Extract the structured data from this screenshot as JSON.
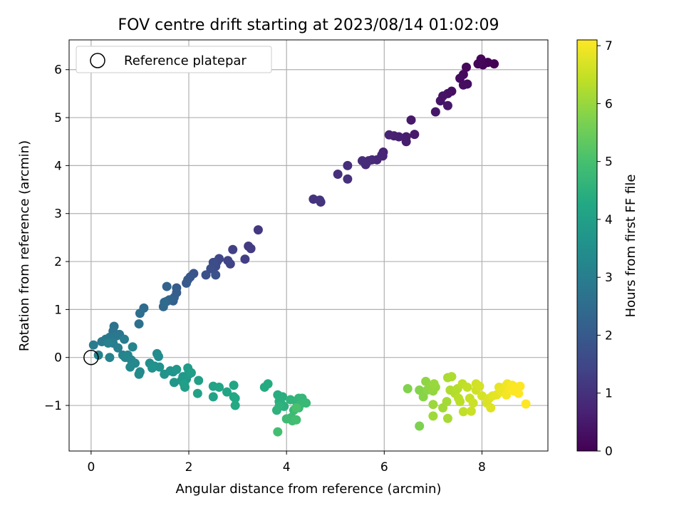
{
  "chart_data": {
    "type": "scatter",
    "title": "FOV centre drift starting at 2023/08/14 01:02:09",
    "xlabel": "Angular distance from reference (arcmin)",
    "ylabel": "Rotation from reference (arcmin)",
    "xlim": [
      -0.45,
      9.35
    ],
    "ylim": [
      -1.95,
      6.62
    ],
    "xticks": [
      0,
      2,
      4,
      6,
      8
    ],
    "yticks": [
      -1,
      0,
      1,
      2,
      3,
      4,
      5,
      6
    ],
    "xtick_labels": [
      "0",
      "2",
      "4",
      "6",
      "8"
    ],
    "ytick_labels": [
      "−1",
      "0",
      "1",
      "2",
      "3",
      "4",
      "5",
      "6"
    ],
    "grid": true,
    "legend": {
      "placement": "top-left",
      "entries": [
        "Reference platepar"
      ]
    },
    "reference_point": {
      "x": 0,
      "y": 0
    },
    "colorbar": {
      "label": "Hours from first FF file",
      "range": [
        0,
        7.1
      ],
      "ticks": [
        0,
        1,
        2,
        3,
        4,
        5,
        6,
        7
      ],
      "tick_labels": [
        "0",
        "1",
        "2",
        "3",
        "4",
        "5",
        "6",
        "7"
      ],
      "colormap": "viridis"
    },
    "points": [
      [
        8.25,
        6.12,
        0.0
      ],
      [
        8.12,
        6.15,
        0.03
      ],
      [
        8.02,
        6.1,
        0.06
      ],
      [
        7.98,
        6.22,
        0.09
      ],
      [
        7.92,
        6.12,
        0.12
      ],
      [
        7.68,
        6.05,
        0.15
      ],
      [
        7.62,
        5.9,
        0.18
      ],
      [
        7.55,
        5.82,
        0.21
      ],
      [
        7.7,
        5.7,
        0.24
      ],
      [
        7.62,
        5.68,
        0.27
      ],
      [
        7.38,
        5.55,
        0.3
      ],
      [
        7.3,
        5.5,
        0.33
      ],
      [
        7.2,
        5.45,
        0.36
      ],
      [
        7.15,
        5.35,
        0.39
      ],
      [
        7.05,
        5.12,
        0.42
      ],
      [
        7.3,
        5.25,
        0.45
      ],
      [
        6.55,
        4.95,
        0.48
      ],
      [
        6.62,
        4.65,
        0.51
      ],
      [
        6.45,
        4.6,
        0.54
      ],
      [
        6.45,
        4.5,
        0.57
      ],
      [
        6.3,
        4.6,
        0.6
      ],
      [
        6.2,
        4.62,
        0.63
      ],
      [
        6.1,
        4.64,
        0.66
      ],
      [
        5.98,
        4.28,
        0.69
      ],
      [
        5.97,
        4.2,
        0.72
      ],
      [
        5.95,
        4.22,
        0.75
      ],
      [
        5.85,
        4.12,
        0.78
      ],
      [
        5.75,
        4.12,
        0.81
      ],
      [
        5.68,
        4.1,
        0.84
      ],
      [
        5.62,
        4.02,
        0.87
      ],
      [
        5.55,
        4.1,
        0.9
      ],
      [
        5.25,
        4.0,
        0.93
      ],
      [
        5.05,
        3.82,
        0.96
      ],
      [
        5.25,
        3.72,
        0.99
      ],
      [
        4.7,
        3.24,
        1.02
      ],
      [
        4.55,
        3.3,
        1.05
      ],
      [
        4.68,
        3.28,
        1.08
      ],
      [
        3.42,
        2.66,
        1.15
      ],
      [
        3.22,
        2.32,
        1.2
      ],
      [
        3.27,
        2.27,
        1.25
      ],
      [
        3.15,
        2.05,
        1.3
      ],
      [
        2.9,
        2.25,
        1.35
      ],
      [
        2.85,
        1.95,
        1.4
      ],
      [
        2.8,
        2.02,
        1.45
      ],
      [
        2.62,
        2.06,
        1.5
      ],
      [
        2.58,
        2.0,
        1.55
      ],
      [
        2.55,
        1.9,
        1.6
      ],
      [
        2.5,
        1.98,
        1.65
      ],
      [
        2.45,
        1.85,
        1.7
      ],
      [
        2.35,
        1.72,
        1.75
      ],
      [
        2.55,
        1.72,
        1.8
      ],
      [
        2.1,
        1.75,
        1.85
      ],
      [
        2.03,
        1.68,
        1.9
      ],
      [
        1.98,
        1.62,
        1.95
      ],
      [
        1.95,
        1.55,
        2.0
      ],
      [
        1.75,
        1.45,
        2.05
      ],
      [
        1.75,
        1.35,
        2.1
      ],
      [
        1.7,
        1.25,
        2.15
      ],
      [
        1.68,
        1.18,
        2.2
      ],
      [
        1.55,
        1.48,
        2.25
      ],
      [
        1.6,
        1.2,
        2.3
      ],
      [
        1.55,
        1.17,
        2.35
      ],
      [
        1.48,
        1.06,
        2.4
      ],
      [
        1.5,
        1.15,
        2.45
      ],
      [
        1.08,
        1.03,
        2.5
      ],
      [
        1.0,
        0.92,
        2.55
      ],
      [
        0.98,
        0.7,
        2.6
      ],
      [
        0.47,
        0.65,
        2.65
      ],
      [
        0.45,
        0.55,
        2.7
      ],
      [
        0.58,
        0.48,
        2.75
      ],
      [
        0.52,
        0.45,
        2.8
      ],
      [
        0.38,
        0.42,
        2.85
      ],
      [
        0.3,
        0.38,
        2.88
      ],
      [
        0.22,
        0.33,
        2.91
      ],
      [
        0.05,
        0.26,
        2.94
      ],
      [
        0.68,
        0.38,
        2.97
      ],
      [
        0.45,
        0.3,
        3.0
      ],
      [
        0.55,
        0.2,
        3.03
      ],
      [
        0.35,
        0.3,
        3.06
      ],
      [
        0.15,
        0.05,
        3.09
      ],
      [
        0.38,
        0.0,
        3.12
      ],
      [
        0.65,
        0.05,
        3.15
      ],
      [
        0.7,
        0.0,
        3.18
      ],
      [
        0.85,
        0.22,
        3.21
      ],
      [
        0.75,
        0.05,
        3.24
      ],
      [
        0.82,
        -0.05,
        3.27
      ],
      [
        0.9,
        -0.12,
        3.3
      ],
      [
        0.8,
        -0.2,
        3.33
      ],
      [
        1.0,
        -0.3,
        3.36
      ],
      [
        0.98,
        -0.35,
        3.39
      ],
      [
        1.35,
        0.08,
        3.42
      ],
      [
        1.38,
        0.02,
        3.45
      ],
      [
        1.2,
        -0.12,
        3.48
      ],
      [
        1.3,
        -0.18,
        3.51
      ],
      [
        1.4,
        -0.2,
        3.54
      ],
      [
        1.25,
        -0.22,
        3.57
      ],
      [
        1.5,
        -0.35,
        3.6
      ],
      [
        1.62,
        -0.28,
        3.63
      ],
      [
        1.68,
        -0.3,
        3.66
      ],
      [
        1.75,
        -0.25,
        3.69
      ],
      [
        1.7,
        -0.52,
        3.72
      ],
      [
        1.85,
        -0.48,
        3.75
      ],
      [
        1.88,
        -0.4,
        3.78
      ],
      [
        1.95,
        -0.45,
        3.81
      ],
      [
        2.0,
        -0.35,
        3.84
      ],
      [
        2.0,
        -0.28,
        3.87
      ],
      [
        1.98,
        -0.22,
        3.9
      ],
      [
        2.05,
        -0.32,
        3.93
      ],
      [
        1.92,
        -0.62,
        3.96
      ],
      [
        1.9,
        -0.55,
        3.99
      ],
      [
        2.2,
        -0.48,
        4.02
      ],
      [
        2.18,
        -0.75,
        4.05
      ],
      [
        2.5,
        -0.6,
        4.08
      ],
      [
        2.5,
        -0.82,
        4.11
      ],
      [
        2.62,
        -0.62,
        4.14
      ],
      [
        2.78,
        -0.72,
        4.17
      ],
      [
        2.92,
        -0.58,
        4.2
      ],
      [
        2.92,
        -0.82,
        4.23
      ],
      [
        2.95,
        -0.85,
        4.26
      ],
      [
        2.95,
        -1.0,
        4.29
      ],
      [
        3.55,
        -0.62,
        4.32
      ],
      [
        3.62,
        -0.55,
        4.35
      ],
      [
        3.82,
        -0.78,
        4.38
      ],
      [
        3.92,
        -0.82,
        4.41
      ],
      [
        3.85,
        -0.92,
        4.44
      ],
      [
        3.9,
        -0.98,
        4.47
      ],
      [
        3.95,
        -1.02,
        4.5
      ],
      [
        3.8,
        -1.1,
        4.53
      ],
      [
        3.85,
        -1.02,
        4.56
      ],
      [
        4.08,
        -0.88,
        4.59
      ],
      [
        4.2,
        -0.92,
        4.62
      ],
      [
        4.25,
        -0.85,
        4.65
      ],
      [
        4.32,
        -0.85,
        4.68
      ],
      [
        4.32,
        -0.95,
        4.71
      ],
      [
        4.4,
        -0.95,
        4.74
      ],
      [
        4.25,
        -1.05,
        4.77
      ],
      [
        4.15,
        -1.1,
        4.8
      ],
      [
        4.1,
        -1.25,
        4.83
      ],
      [
        4.0,
        -1.28,
        4.86
      ],
      [
        4.12,
        -1.32,
        4.89
      ],
      [
        4.2,
        -1.3,
        4.92
      ],
      [
        3.82,
        -1.55,
        4.95
      ],
      [
        4.2,
        -1.05,
        5.02
      ],
      [
        6.72,
        -1.43,
        5.7
      ],
      [
        6.48,
        -0.65,
        5.75
      ],
      [
        6.72,
        -0.68,
        5.8
      ],
      [
        6.8,
        -0.82,
        5.83
      ],
      [
        6.88,
        -0.68,
        5.86
      ],
      [
        6.85,
        -0.5,
        5.89
      ],
      [
        6.95,
        -0.6,
        5.92
      ],
      [
        7.0,
        -0.7,
        5.95
      ],
      [
        7.05,
        -0.62,
        5.98
      ],
      [
        7.02,
        -0.55,
        6.01
      ],
      [
        7.0,
        -0.98,
        6.04
      ],
      [
        7.0,
        -1.22,
        6.07
      ],
      [
        7.2,
        -1.05,
        6.1
      ],
      [
        7.28,
        -0.92,
        6.13
      ],
      [
        7.3,
        -1.27,
        6.16
      ],
      [
        7.3,
        -0.42,
        6.19
      ],
      [
        7.38,
        -0.4,
        6.22
      ],
      [
        7.35,
        -0.68,
        6.25
      ],
      [
        7.45,
        -0.75,
        6.28
      ],
      [
        7.5,
        -0.65,
        6.31
      ],
      [
        7.52,
        -0.85,
        6.34
      ],
      [
        7.55,
        -0.92,
        6.37
      ],
      [
        7.6,
        -0.55,
        6.4
      ],
      [
        7.62,
        -1.13,
        6.43
      ],
      [
        7.7,
        -0.62,
        6.46
      ],
      [
        7.75,
        -0.85,
        6.49
      ],
      [
        7.78,
        -1.12,
        6.52
      ],
      [
        7.82,
        -0.95,
        6.55
      ],
      [
        7.88,
        -0.68,
        6.58
      ],
      [
        7.88,
        -0.55,
        6.61
      ],
      [
        7.95,
        -0.6,
        6.64
      ],
      [
        8.0,
        -0.8,
        6.67
      ],
      [
        8.1,
        -0.95,
        6.7
      ],
      [
        8.15,
        -0.85,
        6.73
      ],
      [
        8.18,
        -1.05,
        6.76
      ],
      [
        8.22,
        -0.8,
        6.79
      ],
      [
        8.3,
        -0.78,
        6.82
      ],
      [
        8.35,
        -0.62,
        6.85
      ],
      [
        8.38,
        -0.7,
        6.88
      ],
      [
        8.42,
        -0.72,
        6.91
      ],
      [
        8.48,
        -0.6,
        6.94
      ],
      [
        8.52,
        -0.55,
        6.97
      ],
      [
        8.5,
        -0.78,
        7.0
      ],
      [
        8.58,
        -0.65,
        7.03
      ],
      [
        8.62,
        -0.58,
        7.06
      ],
      [
        8.65,
        -0.7,
        7.08
      ],
      [
        8.7,
        -0.62,
        7.1
      ],
      [
        8.75,
        -0.75,
        7.1
      ],
      [
        8.78,
        -0.6,
        7.1
      ],
      [
        8.9,
        -0.97,
        7.1
      ]
    ]
  }
}
